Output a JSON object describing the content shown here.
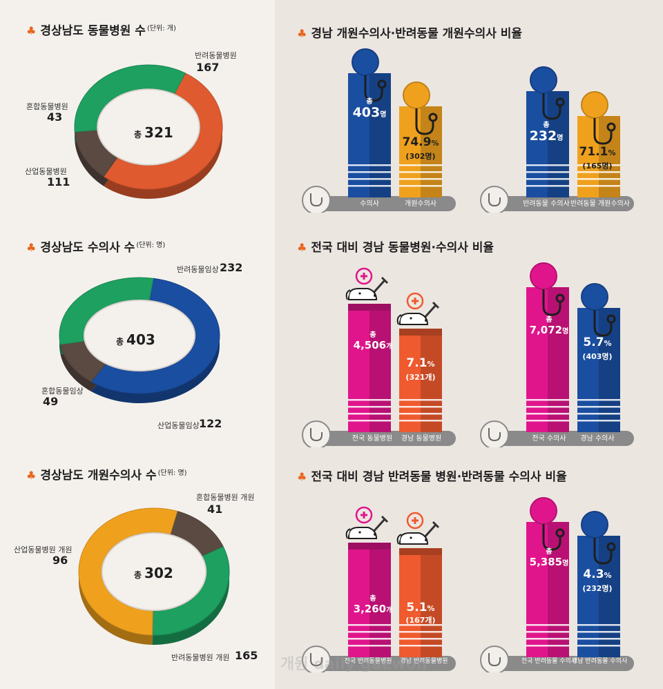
{
  "left": {
    "sections": [
      {
        "title": "경상남도 동물병원 수",
        "unit": "(단위: 개)",
        "total_prefix": "총",
        "total": "321",
        "segments": [
          {
            "label": "반려동물병원",
            "value": "167"
          },
          {
            "label": "혼합동물병원",
            "value": "43"
          },
          {
            "label": "산업동물병원",
            "value": "111"
          }
        ]
      },
      {
        "title": "경상남도 수의사 수",
        "unit": "(단위: 명)",
        "total_prefix": "총",
        "total": "403",
        "segments": [
          {
            "label": "반려동물임상",
            "value": "232"
          },
          {
            "label": "혼합동물임상",
            "value": "49"
          },
          {
            "label": "산업동물임상",
            "value": "122"
          }
        ]
      },
      {
        "title": "경상남도 개원수의사 수",
        "unit": "(단위: 명)",
        "total_prefix": "총",
        "total": "302",
        "segments": [
          {
            "label": "혼합동물병원 개원",
            "value": "41"
          },
          {
            "label": "산업동물병원 개원",
            "value": "96"
          },
          {
            "label": "반려동물병원 개원",
            "value": "165"
          }
        ]
      }
    ]
  },
  "right": {
    "sections": [
      {
        "title": "경남 개원수의사·반려동물 개원수의사 비율"
      },
      {
        "title": "전국 대비 경남 동물병원·수의사 비율"
      },
      {
        "title": "전국 대비 경남 반려동물 병원·반려동물 수의사 비율"
      }
    ],
    "panels": [
      {
        "a_total": "403",
        "a_unit": "명",
        "a_prefix": "총",
        "a_cap": "수의사",
        "b_pct": "74.9",
        "b_pct_sign": "%",
        "b_sub": "(302명)",
        "b_cap": "개원수의사"
      },
      {
        "a_total": "232",
        "a_unit": "명",
        "a_prefix": "총",
        "a_cap": "반려동물 수의사",
        "b_pct": "71.1",
        "b_pct_sign": "%",
        "b_sub": "(165명)",
        "b_cap": "반려동물 개원수의사"
      },
      {
        "a_total": "4,506",
        "a_unit": "개",
        "a_prefix": "총",
        "a_cap": "전국 동물병원",
        "b_pct": "7.1",
        "b_pct_sign": "%",
        "b_sub": "(321개)",
        "b_cap": "경남 동물병원"
      },
      {
        "a_total": "7,072",
        "a_unit": "명",
        "a_prefix": "총",
        "a_cap": "전국 수의사",
        "b_pct": "5.7",
        "b_pct_sign": "%",
        "b_sub": "(403명)",
        "b_cap": "경남 수의사"
      },
      {
        "a_total": "3,260",
        "a_unit": "개",
        "a_prefix": "총",
        "a_cap": "전국 반려동물병원",
        "b_pct": "5.1",
        "b_pct_sign": "%",
        "b_sub": "(167개)",
        "b_cap": "경남 반려동물병원"
      },
      {
        "a_total": "5,385",
        "a_unit": "명",
        "a_prefix": "총",
        "a_cap": "전국 반려동물 수의사",
        "b_pct": "4.3",
        "b_pct_sign": "%",
        "b_sub": "(232명)",
        "b_cap": "경남 반려동물 수의사"
      }
    ]
  },
  "watermark": "개원 daily gaewon",
  "colors": {
    "red": "#e05a2f",
    "brown": "#5a4a42",
    "green": "#1ea060",
    "blue": "#1a4ea0",
    "orange": "#efa11e",
    "magenta": "#e0158c",
    "tomato": "#ef5a2e",
    "gray": "#8a8a8a"
  },
  "chart_data": [
    {
      "type": "pie",
      "title": "경상남도 동물병원 수(단위: 개)",
      "categories": [
        "반려동물병원",
        "혼합동물병원",
        "산업동물병원"
      ],
      "values": [
        167,
        43,
        111
      ],
      "total": 321
    },
    {
      "type": "pie",
      "title": "경상남도 수의사 수(단위: 명)",
      "categories": [
        "반려동물임상",
        "혼합동물임상",
        "산업동물임상"
      ],
      "values": [
        232,
        49,
        122
      ],
      "total": 403
    },
    {
      "type": "pie",
      "title": "경상남도 개원수의사 수(단위: 명)",
      "categories": [
        "혼합동물병원 개원",
        "산업동물병원 개원",
        "반려동물병원 개원"
      ],
      "values": [
        41,
        96,
        165
      ],
      "total": 302
    },
    {
      "type": "bar",
      "title": "경남 개원수의사·반려동물 개원수의사 비율",
      "categories": [
        "수의사",
        "개원수의사"
      ],
      "values": [
        403,
        302
      ],
      "percent": 74.9
    },
    {
      "type": "bar",
      "title": "경남 개원수의사·반려동물 개원수의사 비율",
      "categories": [
        "반려동물 수의사",
        "반려동물 개원수의사"
      ],
      "values": [
        232,
        165
      ],
      "percent": 71.1
    },
    {
      "type": "bar",
      "title": "전국 대비 경남 동물병원·수의사 비율",
      "categories": [
        "전국 동물병원",
        "경남 동물병원"
      ],
      "values": [
        4506,
        321
      ],
      "percent": 7.1
    },
    {
      "type": "bar",
      "title": "전국 대비 경남 동물병원·수의사 비율",
      "categories": [
        "전국 수의사",
        "경남 수의사"
      ],
      "values": [
        7072,
        403
      ],
      "percent": 5.7
    },
    {
      "type": "bar",
      "title": "전국 대비 경남 반려동물 병원·반려동물 수의사 비율",
      "categories": [
        "전국 반려동물병원",
        "경남 반려동물병원"
      ],
      "values": [
        3260,
        167
      ],
      "percent": 5.1
    },
    {
      "type": "bar",
      "title": "전국 대비 경남 반려동물 병원·반려동물 수의사 비율",
      "categories": [
        "전국 반려동물 수의사",
        "경남 반려동물 수의사"
      ],
      "values": [
        5385,
        232
      ],
      "percent": 4.3
    }
  ]
}
